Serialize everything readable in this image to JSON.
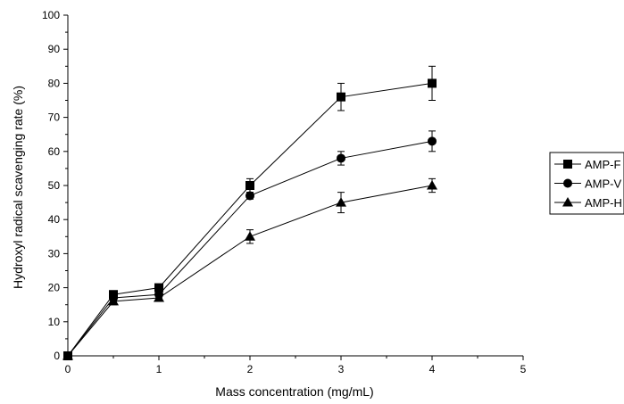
{
  "chart_data": {
    "type": "line",
    "title": "",
    "xlabel": "Mass concentration (mg/mL)",
    "ylabel": "Hydroxyl radical scavenging rate (%)",
    "xlim": [
      0,
      5
    ],
    "ylim": [
      0,
      100
    ],
    "x_ticks": [
      "0",
      "1",
      "2",
      "3",
      "4",
      "5"
    ],
    "y_ticks": [
      "0",
      "10",
      "20",
      "30",
      "40",
      "50",
      "60",
      "70",
      "80",
      "90",
      "100"
    ],
    "grid": false,
    "legend_position": "right",
    "x": [
      0,
      0.5,
      1,
      2,
      3,
      4
    ],
    "series": [
      {
        "name": "AMP-F",
        "marker": "square",
        "values": [
          0,
          18,
          20,
          50,
          76,
          80
        ],
        "errors": [
          0,
          1,
          1,
          2,
          4,
          5
        ]
      },
      {
        "name": "AMP-V",
        "marker": "circle",
        "values": [
          0,
          17,
          18,
          47,
          58,
          63
        ],
        "errors": [
          0,
          1,
          1,
          1,
          2,
          3
        ]
      },
      {
        "name": "AMP-H",
        "marker": "triangle",
        "values": [
          0,
          16,
          17,
          35,
          45,
          50
        ],
        "errors": [
          0,
          1,
          1,
          2,
          3,
          2
        ]
      }
    ]
  }
}
